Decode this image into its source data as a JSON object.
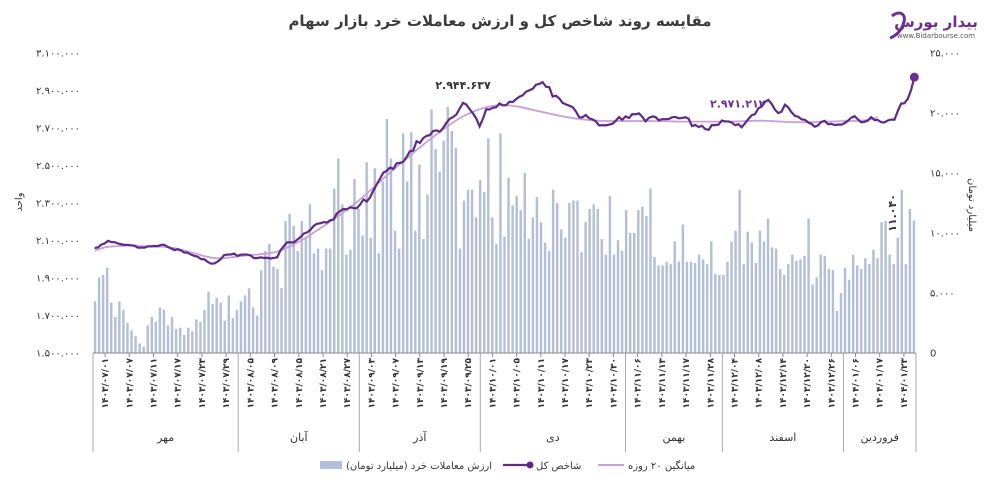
{
  "brand": {
    "name": "بیدار بورس",
    "url": "www.Bidarbourse.com"
  },
  "chart_data": {
    "type": "bar+line",
    "title": "مقایسه روند شاخص کل و ارزش معاملات خرد بازار سهام",
    "y_left": {
      "label": "واحد",
      "min": 1500000,
      "max": 3100000,
      "ticks": [
        "۱.۵۰۰.۰۰۰",
        "۱.۷۰۰.۰۰۰",
        "۱.۹۰۰.۰۰۰",
        "۲.۱۰۰.۰۰۰",
        "۲.۳۰۰.۰۰۰",
        "۲.۵۰۰.۰۰۰",
        "۲.۷۰۰.۰۰۰",
        "۲.۹۰۰.۰۰۰",
        "۳.۱۰۰.۰۰۰"
      ]
    },
    "y_right": {
      "label": "میلیارد تومان",
      "min": 0,
      "max": 25000,
      "ticks": [
        "0",
        "۵.۰۰۰",
        "۱۰.۰۰۰",
        "۱۵.۰۰۰",
        "۲۰.۰۰۰",
        "۲۵.۰۰۰"
      ]
    },
    "x_tick_labels": [
      "۱۴۰۳/۰۷/۰۱",
      "۱۴۰۳/۰۷/۰۷",
      "۱۴۰۳/۰۷/۱۱",
      "۱۴۰۳/۰۷/۱۷",
      "۱۴۰۳/۰۷/۲۳",
      "۱۴۰۳/۰۷/۲۹",
      "۱۴۰۳/۰۸/۰۵",
      "۱۴۰۳/۰۸/۰۹",
      "۱۴۰۳/۰۸/۱۵",
      "۱۴۰۳/۰۸/۲۱",
      "۱۴۰۳/۰۸/۲۷",
      "۱۴۰۳/۰۹/۰۳",
      "۱۴۰۳/۰۹/۰۷",
      "۱۴۰۳/۰۹/۱۳",
      "۱۴۰۳/۰۹/۱۹",
      "۱۴۰۳/۰۹/۲۵",
      "۱۴۰۳/۱۰/۰۱",
      "۱۴۰۳/۱۰/۰۵",
      "۱۴۰۳/۱۰/۱۱",
      "۱۴۰۳/۱۰/۱۷",
      "۱۴۰۳/۱۰/۲۳",
      "۱۴۰۳/۱۰/۳۰",
      "۱۴۰۳/۱۱/۰۶",
      "۱۴۰۳/۱۱/۱۳",
      "۱۴۰۳/۱۱/۱۷",
      "۱۴۰۳/۱۱/۲۸",
      "۱۴۰۳/۱۲/۰۴",
      "۱۴۰۳/۱۲/۰۸",
      "۱۴۰۳/۱۲/۱۴",
      "۱۴۰۳/۱۲/۲۰",
      "۱۴۰۳/۱۲/۲۶",
      "۱۴۰۴/۰۱/۰۶",
      "۱۴۰۴/۰۱/۱۷",
      "۱۴۰۴/۰۱/۲۳"
    ],
    "months": [
      "مهر",
      "آبان",
      "آذر",
      "دی",
      "بهمن",
      "اسفند",
      "فروردین"
    ],
    "month_tick_counts": [
      6,
      5,
      5,
      6,
      4,
      5,
      3
    ],
    "annotations": [
      {
        "text": "۲.۹۴۴.۶۳۷",
        "series": "index",
        "at_point": 111
      },
      {
        "text": "۲.۹۷۱.۲۱۲",
        "series": "index",
        "at_point": 198
      },
      {
        "text": "۱۱.۰۴۰",
        "series": "value",
        "at_point": 198
      }
    ],
    "legend": {
      "position": "bottom",
      "entries": [
        "ارزش معاملات خرد (میلیارد تومان)",
        "شاخص کل",
        "میانگین ۲۰ روزه"
      ]
    },
    "series": [
      {
        "name": "ارزش معاملات خرد (میلیارد تومان)",
        "type": "bar",
        "axis": "right",
        "color": "#b3bfd6",
        "values": [
          4300,
          6300,
          6500,
          7100,
          4200,
          3000,
          4300,
          3600,
          2500,
          1900,
          1400,
          800,
          500,
          2300,
          3000,
          2600,
          3800,
          3600,
          2300,
          3000,
          2000,
          2100,
          1500,
          2100,
          1800,
          2800,
          2600,
          3600,
          5100,
          4100,
          4600,
          4200,
          2700,
          4800,
          2900,
          3600,
          4300,
          4800,
          5400,
          3800,
          3100,
          6900,
          8500,
          9100,
          7200,
          7000,
          5400,
          11000,
          11600,
          10600,
          8500,
          11000,
          9600,
          12400,
          8300,
          8700,
          6900,
          8700,
          8700,
          13700,
          16200,
          12400,
          8200,
          8600,
          14500,
          12000,
          9800,
          15900,
          9600,
          15400,
          8300,
          14300,
          19500,
          16200,
          10200,
          8700,
          18300,
          14300,
          18400,
          10200,
          15700,
          9500,
          13200,
          20300,
          17000,
          15100,
          17700,
          20500,
          18500,
          17100,
          8700,
          12700,
          13600,
          13600,
          11300,
          14400,
          13400,
          17900,
          11300,
          9100,
          18300,
          9700,
          14600,
          12300,
          13100,
          11900,
          15000,
          9500,
          11300,
          13000,
          10900,
          9200,
          8500,
          13600,
          12500,
          10300,
          9600,
          12500,
          12700,
          12700,
          8400,
          10900,
          12000,
          12400,
          12000,
          9500,
          8200,
          13100,
          8200,
          9400,
          8500,
          11900,
          10000,
          10000,
          11900,
          12200,
          11400,
          13700,
          8000,
          7300,
          7300,
          7600,
          7400,
          9300,
          7600,
          10700,
          7600,
          7600,
          7500,
          8200,
          7800,
          7400,
          9300,
          6600,
          6500,
          6500,
          7600,
          9300,
          10200,
          13600,
          7400,
          10100,
          9200,
          7500,
          10200,
          9300,
          11200,
          8800,
          8700,
          7000,
          6500,
          7400,
          8200,
          7700,
          7800,
          8100,
          11200,
          5700,
          6300,
          8200,
          8100,
          7000,
          6900,
          3500,
          5000,
          7100,
          6100,
          8200,
          7300,
          7000,
          7900,
          7400,
          8600,
          7900,
          10900,
          11000,
          8200,
          7400,
          9600,
          13600,
          7400,
          12000,
          11040
        ]
      },
      {
        "name": "شاخص کل",
        "type": "line",
        "axis": "left",
        "color": "#5e2a87",
        "values": [
          2060000,
          2063000,
          2078000,
          2084000,
          2098000,
          2092000,
          2091000,
          2084000,
          2080000,
          2076000,
          2077000,
          2074000,
          2072000,
          2062000,
          2062000,
          2062000,
          2069000,
          2069000,
          2071000,
          2070000,
          2077000,
          2077000,
          2066000,
          2058000,
          2049000,
          2053000,
          2047000,
          2036000,
          2035000,
          2025000,
          2018000,
          2014000,
          2001000,
          2000000,
          1987000,
          1977000,
          1977000,
          1987000,
          2001000,
          2022000,
          2025000,
          2025000,
          2030000,
          2018000,
          2024000,
          2025000,
          2025000,
          2020000,
          2006000,
          2006000,
          2010000,
          2007000,
          2008000,
          2004000,
          2007000,
          2010000,
          2048000,
          2070000,
          2090000,
          2090000,
          2090000,
          2104000,
          2117000,
          2137000,
          2143000,
          2156000,
          2178000,
          2189000,
          2192000,
          2198000,
          2196000,
          2208000,
          2212000,
          2244000,
          2258000,
          2268000,
          2266000,
          2277000,
          2273000,
          2272000,
          2292000,
          2319000,
          2308000,
          2330000,
          2367000,
          2400000,
          2430000,
          2462000,
          2471000,
          2489000,
          2482000,
          2512000,
          2514000,
          2520000,
          2545000,
          2576000,
          2580000,
          2629000,
          2620000,
          2646000,
          2658000,
          2662000,
          2684000,
          2687000,
          2680000,
          2700000,
          2728000,
          2749000,
          2758000,
          2772000,
          2804000,
          2834000,
          2825000,
          2800000,
          2778000,
          2750000,
          2709000,
          2750000,
          2800000,
          2799000,
          2808000,
          2811000,
          2831000,
          2821000,
          2822000,
          2840000,
          2839000,
          2854000,
          2867000,
          2875000,
          2894000,
          2901000,
          2909000,
          2931000,
          2935000,
          2944637,
          2920000,
          2918000,
          2868000,
          2872000,
          2858000,
          2834000,
          2826000,
          2819000,
          2812000,
          2789000,
          2757000,
          2757000,
          2769000,
          2752000,
          2746000,
          2736000,
          2714000,
          2715000,
          2714000,
          2718000,
          2722000,
          2738000,
          2758000,
          2744000,
          2762000,
          2753000,
          2774000,
          2773000,
          2778000,
          2760000,
          2736000,
          2754000,
          2761000,
          2759000,
          2741000,
          2747000,
          2747000,
          2748000,
          2757000,
          2759000,
          2752000,
          2753000,
          2758000,
          2749000,
          2710000,
          2716000,
          2705000,
          2712000,
          2694000,
          2690000,
          2716000,
          2715000,
          2718000,
          2740000,
          2735000,
          2735000,
          2729000,
          2715000,
          2720000,
          2704000,
          2726000,
          2748000,
          2768000,
          2774000,
          2805000,
          2814000,
          2839000,
          2850000,
          2829000,
          2798000,
          2779000,
          2788000,
          2824000,
          2810000,
          2784000,
          2765000,
          2760000,
          2746000,
          2744000,
          2730000,
          2722000,
          2707000,
          2714000,
          2733000,
          2738000,
          2720000,
          2722000,
          2716000,
          2718000,
          2718000,
          2726000,
          2739000,
          2755000,
          2763000,
          2746000,
          2730000,
          2733000,
          2740000,
          2758000,
          2742000,
          2743000,
          2731000,
          2730000,
          2740000,
          2745000,
          2744000,
          2790000,
          2830000,
          2832000,
          2855000,
          2901000,
          2971212
        ]
      },
      {
        "name": "میانگین ۲۰ روزه",
        "type": "line",
        "axis": "left",
        "color": "#c9a0d8",
        "values": [
          2046000,
          2051000,
          2058000,
          2063000,
          2066000,
          2068000,
          2069000,
          2070000,
          2071000,
          2072000,
          2073000,
          2073000,
          2073000,
          2071000,
          2070000,
          2069000,
          2068000,
          2067000,
          2067000,
          2067000,
          2067000,
          2066000,
          2065000,
          2062000,
          2059000,
          2056000,
          2052000,
          2047000,
          2042000,
          2037000,
          2032000,
          2027000,
          2022000,
          2017000,
          2013000,
          2009000,
          2007000,
          2005000,
          2005000,
          2006000,
          2008000,
          2010000,
          2012000,
          2014000,
          2016000,
          2019000,
          2021000,
          2023000,
          2024000,
          2025000,
          2027000,
          2029000,
          2031000,
          2033000,
          2036000,
          2041000,
          2047000,
          2054000,
          2062000,
          2070000,
          2079000,
          2089000,
          2098000,
          2108000,
          2118000,
          2130000,
          2142000,
          2154000,
          2165000,
          2177000,
          2188000,
          2201000,
          2213000,
          2226000,
          2238000,
          2251000,
          2264000,
          2278000,
          2291000,
          2305000,
          2320000,
          2335000,
          2350000,
          2366000,
          2382000,
          2398000,
          2414000,
          2430000,
          2446000,
          2462000,
          2477000,
          2492000,
          2507000,
          2522000,
          2537000,
          2552000,
          2567000,
          2582000,
          2596000,
          2611000,
          2625000,
          2639000,
          2652000,
          2666000,
          2679000,
          2692000,
          2705000,
          2717000,
          2729000,
          2741000,
          2752000,
          2762000,
          2771000,
          2779000,
          2787000,
          2794000,
          2800000,
          2806000,
          2811000,
          2815000,
          2818000,
          2820000,
          2821000,
          2821000,
          2821000,
          2820000,
          2818000,
          2816000,
          2813000,
          2809000,
          2805000,
          2801000,
          2797000,
          2793000,
          2789000,
          2785000,
          2781000,
          2777000,
          2773000,
          2769000,
          2766000,
          2762000,
          2759000,
          2756000,
          2753000,
          2750000,
          2748000,
          2746000,
          2744000,
          2742000,
          2741000,
          2740000,
          2739000,
          2738000,
          2737000,
          2737000,
          2737000,
          2737000,
          2737000,
          2737000,
          2737000,
          2737000,
          2737000,
          2737000,
          2737000,
          2737000,
          2737000,
          2737000,
          2737000,
          2736000,
          2736000,
          2736000,
          2736000,
          2736000,
          2735000,
          2735000,
          2734000,
          2734000,
          2734000,
          2734000,
          2734000,
          2734000,
          2734000,
          2734000,
          2734000,
          2734000,
          2734000,
          2734000,
          2734000,
          2734000,
          2734000,
          2734000,
          2735000,
          2735000,
          2735000,
          2736000,
          2737000,
          2738000,
          2738000,
          2739000,
          2739000,
          2739000,
          2738000,
          2738000,
          2737000,
          2736000,
          2735000,
          2734000,
          2733000,
          2732000,
          2732000,
          2731000,
          2731000,
          2731000,
          2731000,
          2731000,
          2731000,
          2732000,
          2732000,
          2733000,
          2733000,
          2734000,
          2735000,
          2735000,
          2736000,
          2736000,
          2737000,
          2737000,
          2737000,
          2737000,
          2738000,
          2739000,
          2741000,
          2744000,
          2748000,
          2752000,
          2757000
        ]
      }
    ]
  }
}
